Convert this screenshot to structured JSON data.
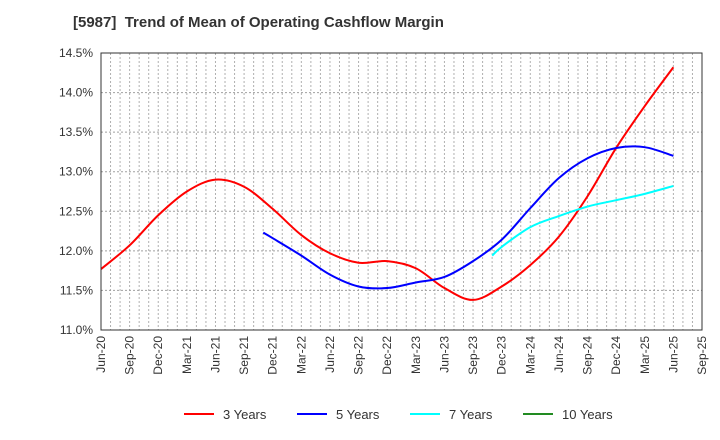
{
  "chart_data": {
    "type": "line",
    "title": "[5987]  Trend of Mean of Operating Cashflow Margin",
    "xlabel": "",
    "ylabel": "",
    "ylim": [
      11.0,
      14.5
    ],
    "y_ticks": [
      "11.0%",
      "11.5%",
      "12.0%",
      "12.5%",
      "13.0%",
      "13.5%",
      "14.0%",
      "14.5%"
    ],
    "y_tick_values": [
      11.0,
      11.5,
      12.0,
      12.5,
      13.0,
      13.5,
      14.0,
      14.5
    ],
    "x_ticks": [
      "Jun-20",
      "Sep-20",
      "Dec-20",
      "Mar-21",
      "Jun-21",
      "Sep-21",
      "Dec-21",
      "Mar-22",
      "Jun-22",
      "Sep-22",
      "Dec-22",
      "Mar-23",
      "Jun-23",
      "Sep-23",
      "Dec-23",
      "Mar-24",
      "Jun-24",
      "Sep-24",
      "Dec-24",
      "Mar-25",
      "Jun-25",
      "Sep-25"
    ],
    "x_unit": "quarter index from Jun-20 (0) to Sep-25 (21); fractional values are months",
    "grid": true,
    "legend_position": "bottom",
    "series": [
      {
        "name": "3 Years",
        "color": "#ff0000",
        "points": [
          {
            "x": 0,
            "label": "Jun-20",
            "y": 11.77
          },
          {
            "x": 1,
            "label": "Sep-20",
            "y": 12.07
          },
          {
            "x": 2,
            "label": "Dec-20",
            "y": 12.45
          },
          {
            "x": 3,
            "label": "Mar-21",
            "y": 12.75
          },
          {
            "x": 4,
            "label": "Jun-21",
            "y": 12.9
          },
          {
            "x": 5,
            "label": "Sep-21",
            "y": 12.81
          },
          {
            "x": 6,
            "label": "Dec-21",
            "y": 12.53
          },
          {
            "x": 7,
            "label": "Mar-22",
            "y": 12.2
          },
          {
            "x": 8,
            "label": "Jun-22",
            "y": 11.97
          },
          {
            "x": 9,
            "label": "Sep-22",
            "y": 11.85
          },
          {
            "x": 10,
            "label": "Dec-22",
            "y": 11.87
          },
          {
            "x": 11,
            "label": "Mar-23",
            "y": 11.78
          },
          {
            "x": 12,
            "label": "Jun-23",
            "y": 11.53
          },
          {
            "x": 13,
            "label": "Sep-23",
            "y": 11.38
          },
          {
            "x": 14,
            "label": "Dec-23",
            "y": 11.55
          },
          {
            "x": 15,
            "label": "Mar-24",
            "y": 11.82
          },
          {
            "x": 16,
            "label": "Jun-24",
            "y": 12.18
          },
          {
            "x": 17,
            "label": "Sep-24",
            "y": 12.69
          },
          {
            "x": 18,
            "label": "Dec-24",
            "y": 13.3
          },
          {
            "x": 19,
            "label": "Mar-25",
            "y": 13.83
          },
          {
            "x": 20,
            "label": "Jun-25",
            "y": 14.32
          }
        ]
      },
      {
        "name": "5 Years",
        "color": "#0000ff",
        "points": [
          {
            "x": 5.67,
            "label": "Nov-21",
            "y": 12.23
          },
          {
            "x": 6,
            "label": "Dec-21",
            "y": 12.16
          },
          {
            "x": 7,
            "label": "Mar-22",
            "y": 11.94
          },
          {
            "x": 8,
            "label": "Jun-22",
            "y": 11.7
          },
          {
            "x": 9,
            "label": "Sep-22",
            "y": 11.55
          },
          {
            "x": 10,
            "label": "Dec-22",
            "y": 11.53
          },
          {
            "x": 11,
            "label": "Mar-23",
            "y": 11.6
          },
          {
            "x": 12,
            "label": "Jun-23",
            "y": 11.67
          },
          {
            "x": 13,
            "label": "Sep-23",
            "y": 11.87
          },
          {
            "x": 14,
            "label": "Dec-23",
            "y": 12.14
          },
          {
            "x": 15,
            "label": "Mar-24",
            "y": 12.54
          },
          {
            "x": 16,
            "label": "Jun-24",
            "y": 12.92
          },
          {
            "x": 17,
            "label": "Sep-24",
            "y": 13.17
          },
          {
            "x": 18,
            "label": "Dec-24",
            "y": 13.3
          },
          {
            "x": 19,
            "label": "Mar-25",
            "y": 13.31
          },
          {
            "x": 20,
            "label": "Jun-25",
            "y": 13.2
          }
        ]
      },
      {
        "name": "7 Years",
        "color": "#00ffff",
        "points": [
          {
            "x": 13.67,
            "label": "Nov-23",
            "y": 11.94
          },
          {
            "x": 14,
            "label": "Dec-23",
            "y": 12.05
          },
          {
            "x": 15,
            "label": "Mar-24",
            "y": 12.3
          },
          {
            "x": 16,
            "label": "Jun-24",
            "y": 12.44
          },
          {
            "x": 17,
            "label": "Sep-24",
            "y": 12.56
          },
          {
            "x": 18,
            "label": "Dec-24",
            "y": 12.64
          },
          {
            "x": 19,
            "label": "Mar-25",
            "y": 12.72
          },
          {
            "x": 20,
            "label": "Jun-25",
            "y": 12.82
          }
        ]
      },
      {
        "name": "10 Years",
        "color": "#228b22",
        "points": []
      }
    ]
  }
}
